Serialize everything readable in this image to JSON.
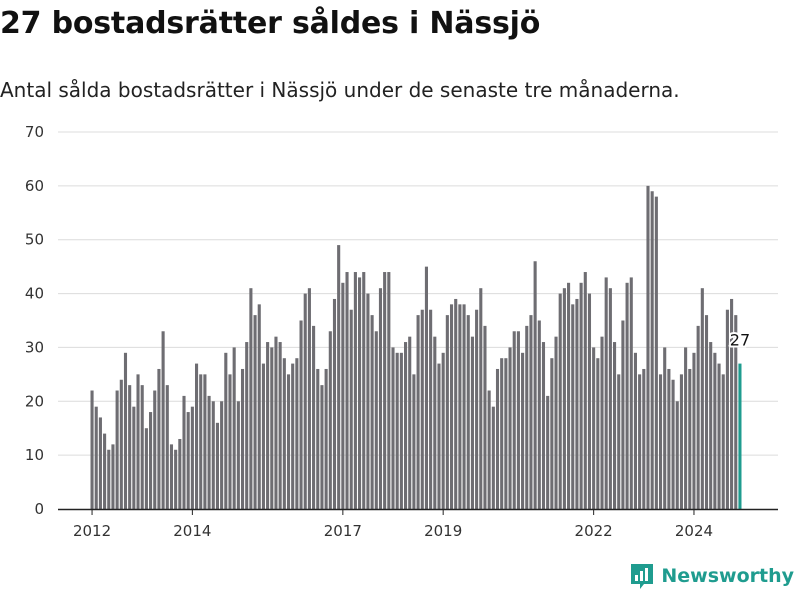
{
  "header": {
    "title": "27 bostadsrätter såldes i Nässjö",
    "subtitle": "Antal sålda bostadsrätter i Nässjö under de senaste tre månaderna."
  },
  "brand": {
    "name": "Newsworthy",
    "icon": "newsworthy-logo-icon",
    "color": "#1f9c8f"
  },
  "chart_data": {
    "type": "bar",
    "title": "",
    "xlabel": "",
    "ylabel": "",
    "ylim": [
      0,
      70
    ],
    "yticks": [
      0,
      10,
      20,
      30,
      40,
      50,
      60,
      70
    ],
    "x_tick_labels": [
      "2012",
      "2014",
      "2017",
      "2019",
      "2022",
      "2024"
    ],
    "x_tick_index": [
      0,
      24,
      60,
      84,
      120,
      144
    ],
    "grid": true,
    "bar_color": "#6e6d72",
    "highlight_color": "#1f9c8f",
    "highlight_label": "27",
    "values": [
      22,
      19,
      17,
      14,
      11,
      12,
      22,
      24,
      29,
      23,
      19,
      25,
      23,
      15,
      18,
      22,
      26,
      33,
      23,
      12,
      11,
      13,
      21,
      18,
      19,
      27,
      25,
      25,
      21,
      20,
      16,
      20,
      29,
      25,
      30,
      20,
      26,
      31,
      41,
      36,
      38,
      27,
      31,
      30,
      32,
      31,
      28,
      25,
      27,
      28,
      35,
      40,
      41,
      34,
      26,
      23,
      26,
      33,
      39,
      49,
      42,
      44,
      37,
      44,
      43,
      44,
      40,
      36,
      33,
      41,
      44,
      44,
      30,
      29,
      29,
      31,
      32,
      25,
      36,
      37,
      45,
      37,
      32,
      27,
      29,
      36,
      38,
      39,
      38,
      38,
      36,
      32,
      37,
      41,
      34,
      22,
      19,
      26,
      28,
      28,
      30,
      33,
      33,
      29,
      34,
      36,
      46,
      35,
      31,
      21,
      28,
      32,
      40,
      41,
      42,
      38,
      39,
      42,
      44,
      40,
      30,
      28,
      32,
      43,
      41,
      31,
      25,
      35,
      42,
      43,
      29,
      25,
      26,
      60,
      59,
      58,
      25,
      30,
      26,
      24,
      20,
      25,
      30,
      26,
      29,
      34,
      41,
      36,
      31,
      29,
      27,
      25,
      37,
      39,
      36,
      27
    ]
  }
}
